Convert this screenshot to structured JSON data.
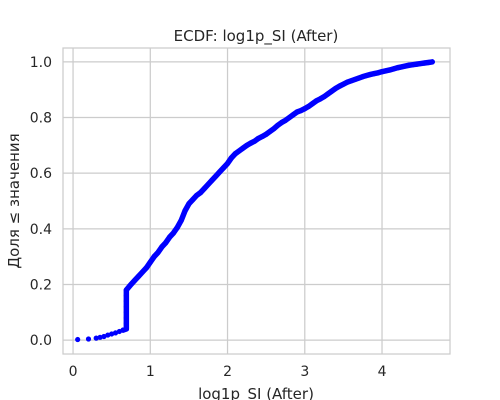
{
  "chart_data": {
    "type": "scatter",
    "title": "ECDF: log1p_SI (After)",
    "xlabel": "log1p_SI (After)",
    "ylabel": "Доля ≤ значения",
    "xlim": [
      -0.13,
      4.88
    ],
    "ylim": [
      -0.05,
      1.05
    ],
    "x_ticks": [
      0,
      1,
      2,
      3,
      4
    ],
    "y_ticks": [
      0.0,
      0.2,
      0.4,
      0.6,
      0.8,
      1.0
    ],
    "x_tick_labels": [
      "0",
      "1",
      "2",
      "3",
      "4"
    ],
    "y_tick_labels": [
      "0.0",
      "0.2",
      "0.4",
      "0.6",
      "0.8",
      "1.0"
    ],
    "grid": true,
    "series": [
      {
        "color": "#0000ff",
        "points": [
          [
            0.06,
            0.002
          ],
          [
            0.2,
            0.004
          ],
          [
            0.3,
            0.007
          ],
          [
            0.35,
            0.01
          ],
          [
            0.4,
            0.013
          ],
          [
            0.45,
            0.018
          ],
          [
            0.5,
            0.022
          ],
          [
            0.55,
            0.026
          ],
          [
            0.6,
            0.031
          ],
          [
            0.65,
            0.036
          ],
          [
            0.69,
            0.04
          ],
          [
            0.69,
            0.06
          ],
          [
            0.69,
            0.08
          ],
          [
            0.69,
            0.1
          ],
          [
            0.69,
            0.12
          ],
          [
            0.69,
            0.14
          ],
          [
            0.69,
            0.16
          ],
          [
            0.69,
            0.18
          ],
          [
            0.75,
            0.2
          ],
          [
            0.8,
            0.215
          ],
          [
            0.85,
            0.23
          ],
          [
            0.9,
            0.245
          ],
          [
            0.95,
            0.26
          ],
          [
            1.0,
            0.28
          ],
          [
            1.05,
            0.3
          ],
          [
            1.1,
            0.315
          ],
          [
            1.15,
            0.335
          ],
          [
            1.2,
            0.35
          ],
          [
            1.25,
            0.37
          ],
          [
            1.3,
            0.385
          ],
          [
            1.35,
            0.405
          ],
          [
            1.4,
            0.43
          ],
          [
            1.45,
            0.465
          ],
          [
            1.5,
            0.49
          ],
          [
            1.55,
            0.505
          ],
          [
            1.6,
            0.52
          ],
          [
            1.65,
            0.53
          ],
          [
            1.7,
            0.545
          ],
          [
            1.75,
            0.56
          ],
          [
            1.8,
            0.575
          ],
          [
            1.85,
            0.59
          ],
          [
            1.9,
            0.605
          ],
          [
            1.95,
            0.62
          ],
          [
            2.0,
            0.635
          ],
          [
            2.05,
            0.655
          ],
          [
            2.1,
            0.67
          ],
          [
            2.15,
            0.68
          ],
          [
            2.2,
            0.69
          ],
          [
            2.25,
            0.7
          ],
          [
            2.3,
            0.708
          ],
          [
            2.35,
            0.715
          ],
          [
            2.4,
            0.725
          ],
          [
            2.45,
            0.732
          ],
          [
            2.5,
            0.74
          ],
          [
            2.55,
            0.75
          ],
          [
            2.6,
            0.76
          ],
          [
            2.65,
            0.772
          ],
          [
            2.7,
            0.782
          ],
          [
            2.75,
            0.79
          ],
          [
            2.8,
            0.8
          ],
          [
            2.85,
            0.81
          ],
          [
            2.9,
            0.82
          ],
          [
            2.95,
            0.825
          ],
          [
            3.0,
            0.832
          ],
          [
            3.05,
            0.84
          ],
          [
            3.1,
            0.85
          ],
          [
            3.15,
            0.86
          ],
          [
            3.2,
            0.867
          ],
          [
            3.25,
            0.875
          ],
          [
            3.3,
            0.885
          ],
          [
            3.35,
            0.895
          ],
          [
            3.4,
            0.905
          ],
          [
            3.45,
            0.913
          ],
          [
            3.5,
            0.92
          ],
          [
            3.55,
            0.927
          ],
          [
            3.6,
            0.932
          ],
          [
            3.65,
            0.937
          ],
          [
            3.7,
            0.942
          ],
          [
            3.75,
            0.947
          ],
          [
            3.8,
            0.951
          ],
          [
            3.85,
            0.955
          ],
          [
            3.9,
            0.958
          ],
          [
            3.95,
            0.961
          ],
          [
            4.0,
            0.965
          ],
          [
            4.05,
            0.968
          ],
          [
            4.1,
            0.971
          ],
          [
            4.15,
            0.975
          ],
          [
            4.2,
            0.979
          ],
          [
            4.25,
            0.982
          ],
          [
            4.3,
            0.985
          ],
          [
            4.35,
            0.988
          ],
          [
            4.4,
            0.99
          ],
          [
            4.45,
            0.992
          ],
          [
            4.5,
            0.994
          ],
          [
            4.55,
            0.996
          ],
          [
            4.6,
            0.998
          ],
          [
            4.65,
            1.0
          ]
        ]
      }
    ]
  }
}
